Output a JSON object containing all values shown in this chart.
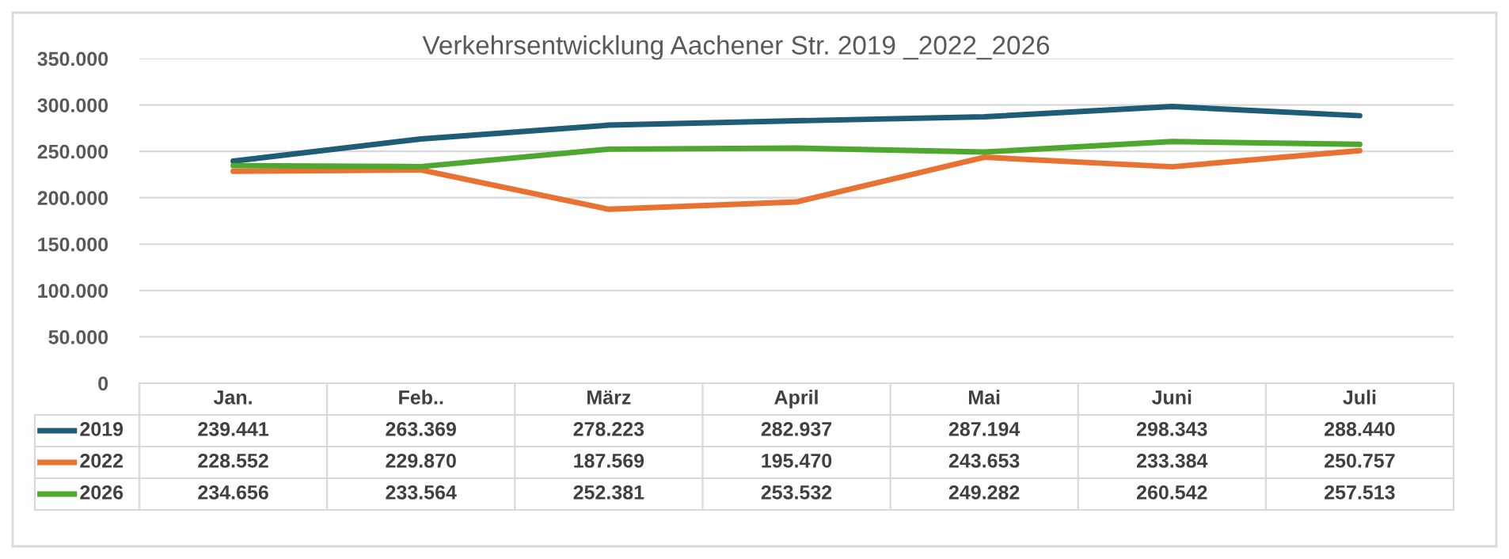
{
  "chart_data": {
    "type": "line",
    "title": "Verkehrsentwicklung Aachener Str. 2019 _2022_2026",
    "categories": [
      "Jan.",
      "Feb..",
      "März",
      "April",
      "Mai",
      "Juni",
      "Juli"
    ],
    "series": [
      {
        "name": "2019",
        "color": "#1f5c78",
        "values": [
          239441,
          263369,
          278223,
          282937,
          287194,
          298343,
          288440
        ],
        "value_labels": [
          "239.441",
          "263.369",
          "278.223",
          "282.937",
          "287.194",
          "298.343",
          "288.440"
        ]
      },
      {
        "name": "2022",
        "color": "#e97132",
        "values": [
          228552,
          229870,
          187569,
          195470,
          243653,
          233384,
          250757
        ],
        "value_labels": [
          "228.552",
          "229.870",
          "187.569",
          "195.470",
          "243.653",
          "233.384",
          "250.757"
        ]
      },
      {
        "name": "2026",
        "color": "#4ea72e",
        "values": [
          234656,
          233564,
          252381,
          253532,
          249282,
          260542,
          257513
        ],
        "value_labels": [
          "234.656",
          "233.564",
          "252.381",
          "253.532",
          "249.282",
          "260.542",
          "257.513"
        ]
      }
    ],
    "ylim": [
      0,
      350000
    ],
    "yticks": [
      0,
      {
        "value": 50000,
        "label": "50.000"
      },
      {
        "value": 100000,
        "label": "100.000"
      },
      {
        "value": 150000,
        "label": "150.000"
      },
      {
        "value": 200000,
        "label": "200.000"
      },
      {
        "value": 250000,
        "label": "250.000"
      },
      {
        "value": 300000,
        "label": "300.000"
      },
      {
        "value": 350000,
        "label": "350.000"
      }
    ],
    "grid": "y",
    "legend": "bottom left"
  }
}
